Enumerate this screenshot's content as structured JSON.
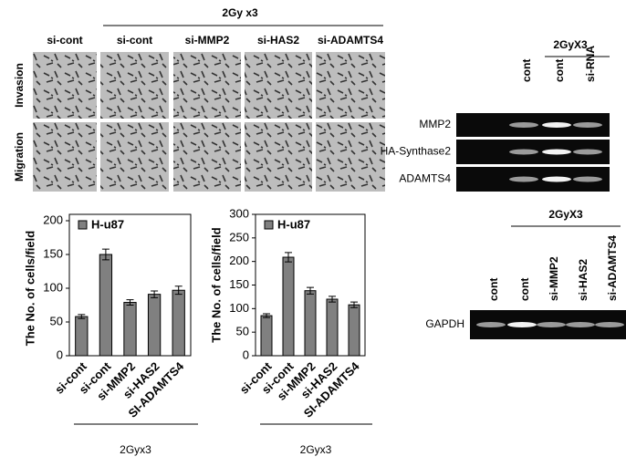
{
  "micrographs": {
    "header": "2Gy x3",
    "columns": [
      "si-cont",
      "si-cont",
      "si-MMP2",
      "si-HAS2",
      "si-ADAMTS4"
    ],
    "rows": [
      "Invasion",
      "Migration"
    ]
  },
  "gels": {
    "top": {
      "header": "2GyX3",
      "lanes": [
        "cont",
        "cont",
        "si-RNA"
      ],
      "rows": [
        "MMP2",
        "HA-Synthase2",
        "ADAMTS4"
      ]
    },
    "bottom": {
      "header": "2GyX3",
      "lanes": [
        "cont",
        "cont",
        "si-MMP2",
        "si-HAS2",
        "si-ADAMTS4"
      ],
      "rows": [
        "GAPDH"
      ]
    }
  },
  "chart_data": [
    {
      "type": "bar",
      "ylabel": "The No. of  cells/field",
      "categories": [
        "si-cont",
        "si-cont",
        "si-MMP2",
        "si-HAS2",
        "SI-ADAMTS4"
      ],
      "series": [
        {
          "name": "H-u87",
          "color": "#808080",
          "values": [
            58,
            150,
            79,
            91,
            97
          ],
          "errors": [
            3,
            8,
            4,
            5,
            6
          ]
        }
      ],
      "ylim": [
        0,
        200
      ],
      "yticks": [
        0,
        50,
        100,
        150,
        200
      ],
      "group_label": "2Gyx3"
    },
    {
      "type": "bar",
      "ylabel": "The No. of  cells/field",
      "categories": [
        "si-cont",
        "si-cont",
        "si-MMP2",
        "si-HAS2",
        "SI-ADAMTS4"
      ],
      "series": [
        {
          "name": "H-u87",
          "color": "#808080",
          "values": [
            85,
            209,
            138,
            120,
            108
          ],
          "errors": [
            4,
            10,
            7,
            6,
            6
          ]
        }
      ],
      "ylim": [
        0,
        300
      ],
      "yticks": [
        0,
        50,
        100,
        150,
        200,
        250,
        300
      ],
      "group_label": "2Gyx3"
    }
  ]
}
